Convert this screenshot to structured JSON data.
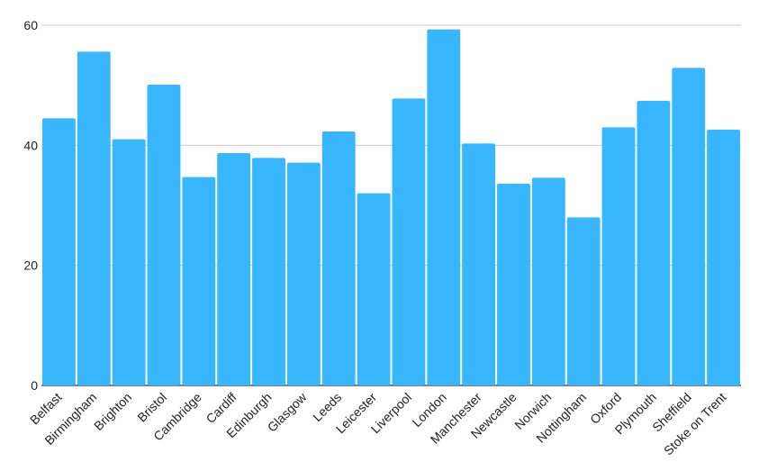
{
  "chart_data": {
    "type": "bar",
    "categories": [
      "Belfast",
      "Birmingham",
      "Brighton",
      "Bristol",
      "Cambridge",
      "Cardiff",
      "Edinburgh",
      "Glasgow",
      "Leeds",
      "Leicester",
      "Liverpool",
      "London",
      "Manchester",
      "Newcastle",
      "Norwich",
      "Nottingham",
      "Oxford",
      "Plymouth",
      "Sheffield",
      "Stoke on Trent"
    ],
    "values": [
      44.5,
      55.6,
      41.0,
      50.1,
      34.7,
      38.7,
      37.9,
      37.1,
      42.3,
      32.0,
      47.8,
      59.3,
      40.3,
      33.6,
      34.6,
      28.0,
      43.0,
      47.4,
      52.9,
      42.6
    ],
    "ylim": [
      0,
      60
    ],
    "yticks": [
      0,
      20,
      40,
      60
    ],
    "title": "",
    "xlabel": "",
    "ylabel": "",
    "grid": true,
    "bar_color": "#38b6ff",
    "grid_color": "#cccccc"
  }
}
